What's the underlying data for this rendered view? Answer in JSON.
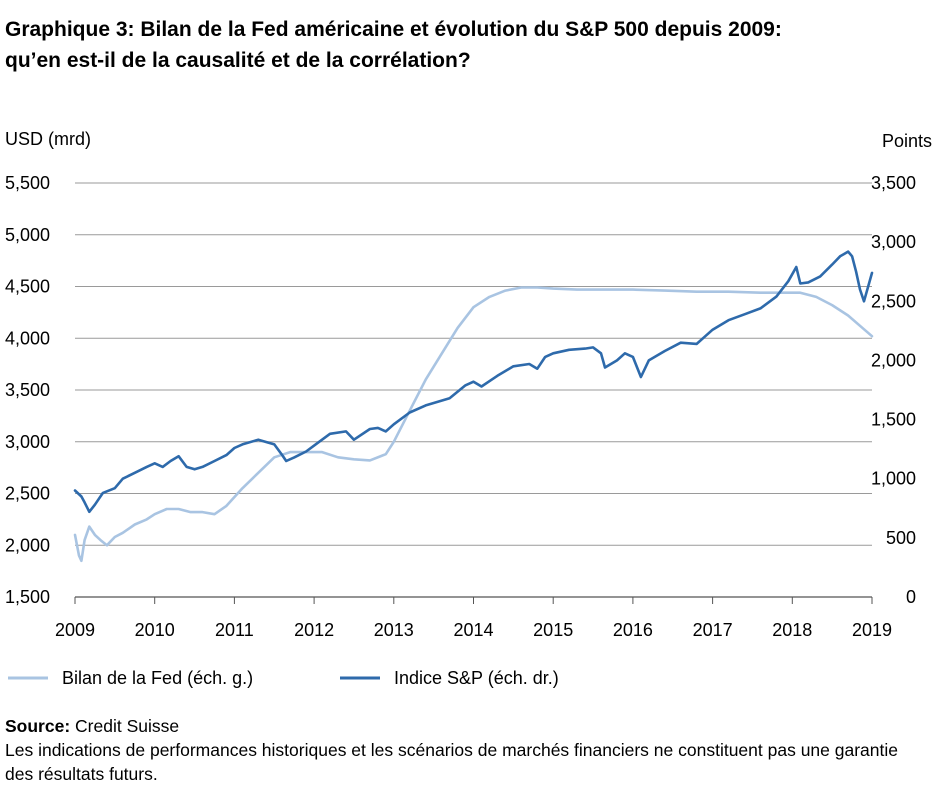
{
  "title_line1": "Graphique 3: Bilan de la Fed américaine et évolution du S&P 500 depuis 2009:",
  "title_line2": "qu’en est-il de la causalité et de la corrélation?",
  "source_label": "Source:",
  "source_text": "Credit Suisse",
  "disclaimer": "Les indications de performances historiques et les scénarios de marchés financiers ne constituent pas une garantie des résultats futurs.",
  "chart_data": {
    "type": "line",
    "left_axis_label": "USD (mrd)",
    "right_axis_label": "Points",
    "y_left": {
      "min": 1500,
      "max": 5500,
      "ticks": [
        1500,
        2000,
        2500,
        3000,
        3500,
        4000,
        4500,
        5000,
        5500
      ],
      "tick_labels": [
        "1,500",
        "2,000",
        "2,500",
        "3,000",
        "3,500",
        "4,000",
        "4,500",
        "5,000",
        "5,500"
      ]
    },
    "y_right": {
      "min": 0,
      "max": 3500,
      "ticks": [
        0,
        500,
        1000,
        1500,
        2000,
        2500,
        3000,
        3500
      ],
      "tick_labels": [
        "0",
        "500",
        "1,000",
        "1,500",
        "2,000",
        "2,500",
        "3,000",
        "3,500"
      ]
    },
    "x_range": [
      2009,
      2019
    ],
    "x_ticks": [
      "2009",
      "2010",
      "2011",
      "2012",
      "2013",
      "2014",
      "2015",
      "2016",
      "2017",
      "2018",
      "2019"
    ],
    "grid": "horizontal",
    "legend_position": "bottom",
    "series": [
      {
        "name": "Bilan de la Fed (éch. g.)",
        "axis": "left",
        "color": "#a9c4e2",
        "x": [
          2009.0,
          2009.05,
          2009.08,
          2009.12,
          2009.18,
          2009.25,
          2009.32,
          2009.4,
          2009.5,
          2009.6,
          2009.75,
          2009.9,
          2010.0,
          2010.15,
          2010.3,
          2010.45,
          2010.6,
          2010.75,
          2010.9,
          2011.1,
          2011.3,
          2011.5,
          2011.7,
          2011.9,
          2012.1,
          2012.3,
          2012.5,
          2012.7,
          2012.9,
          2013.0,
          2013.2,
          2013.4,
          2013.6,
          2013.8,
          2014.0,
          2014.2,
          2014.4,
          2014.6,
          2014.8,
          2015.0,
          2015.3,
          2015.6,
          2016.0,
          2016.4,
          2016.8,
          2017.2,
          2017.6,
          2017.9,
          2018.1,
          2018.3,
          2018.5,
          2018.7,
          2018.85,
          2019.0
        ],
        "values": [
          2100,
          1900,
          1850,
          2050,
          2180,
          2100,
          2050,
          2000,
          2080,
          2120,
          2200,
          2250,
          2300,
          2350,
          2350,
          2320,
          2320,
          2300,
          2380,
          2550,
          2700,
          2850,
          2900,
          2900,
          2900,
          2850,
          2830,
          2820,
          2880,
          3000,
          3300,
          3600,
          3850,
          4100,
          4300,
          4400,
          4460,
          4490,
          4490,
          4480,
          4470,
          4470,
          4470,
          4460,
          4450,
          4450,
          4440,
          4440,
          4440,
          4400,
          4320,
          4220,
          4120,
          4020
        ]
      },
      {
        "name": "Indice S&P (éch. dr.)",
        "axis": "right",
        "color": "#2e6aab",
        "x": [
          2009.0,
          2009.08,
          2009.12,
          2009.18,
          2009.25,
          2009.35,
          2009.5,
          2009.6,
          2009.75,
          2009.9,
          2010.0,
          2010.1,
          2010.2,
          2010.3,
          2010.4,
          2010.5,
          2010.6,
          2010.75,
          2010.9,
          2011.0,
          2011.1,
          2011.3,
          2011.5,
          2011.6,
          2011.65,
          2011.75,
          2011.9,
          2012.0,
          2012.2,
          2012.4,
          2012.5,
          2012.7,
          2012.8,
          2012.9,
          2013.0,
          2013.2,
          2013.4,
          2013.5,
          2013.7,
          2013.9,
          2014.0,
          2014.1,
          2014.3,
          2014.5,
          2014.7,
          2014.8,
          2014.9,
          2015.0,
          2015.2,
          2015.4,
          2015.5,
          2015.6,
          2015.65,
          2015.8,
          2015.9,
          2016.0,
          2016.1,
          2016.2,
          2016.4,
          2016.6,
          2016.8,
          2016.9,
          2017.0,
          2017.2,
          2017.4,
          2017.6,
          2017.8,
          2017.95,
          2018.05,
          2018.1,
          2018.2,
          2018.35,
          2018.5,
          2018.6,
          2018.65,
          2018.7,
          2018.75,
          2018.8,
          2018.85,
          2018.9,
          2019.0
        ],
        "values": [
          900,
          850,
          800,
          720,
          780,
          880,
          920,
          1000,
          1050,
          1100,
          1130,
          1100,
          1150,
          1190,
          1100,
          1080,
          1100,
          1150,
          1200,
          1260,
          1290,
          1330,
          1290,
          1200,
          1150,
          1180,
          1230,
          1280,
          1380,
          1400,
          1330,
          1420,
          1430,
          1400,
          1460,
          1560,
          1620,
          1640,
          1680,
          1790,
          1820,
          1780,
          1870,
          1950,
          1970,
          1930,
          2030,
          2060,
          2090,
          2100,
          2110,
          2060,
          1940,
          2000,
          2060,
          2030,
          1860,
          2000,
          2080,
          2150,
          2140,
          2200,
          2260,
          2340,
          2390,
          2440,
          2540,
          2670,
          2790,
          2650,
          2660,
          2710,
          2810,
          2880,
          2900,
          2920,
          2880,
          2750,
          2600,
          2500,
          2740
        ]
      }
    ]
  }
}
